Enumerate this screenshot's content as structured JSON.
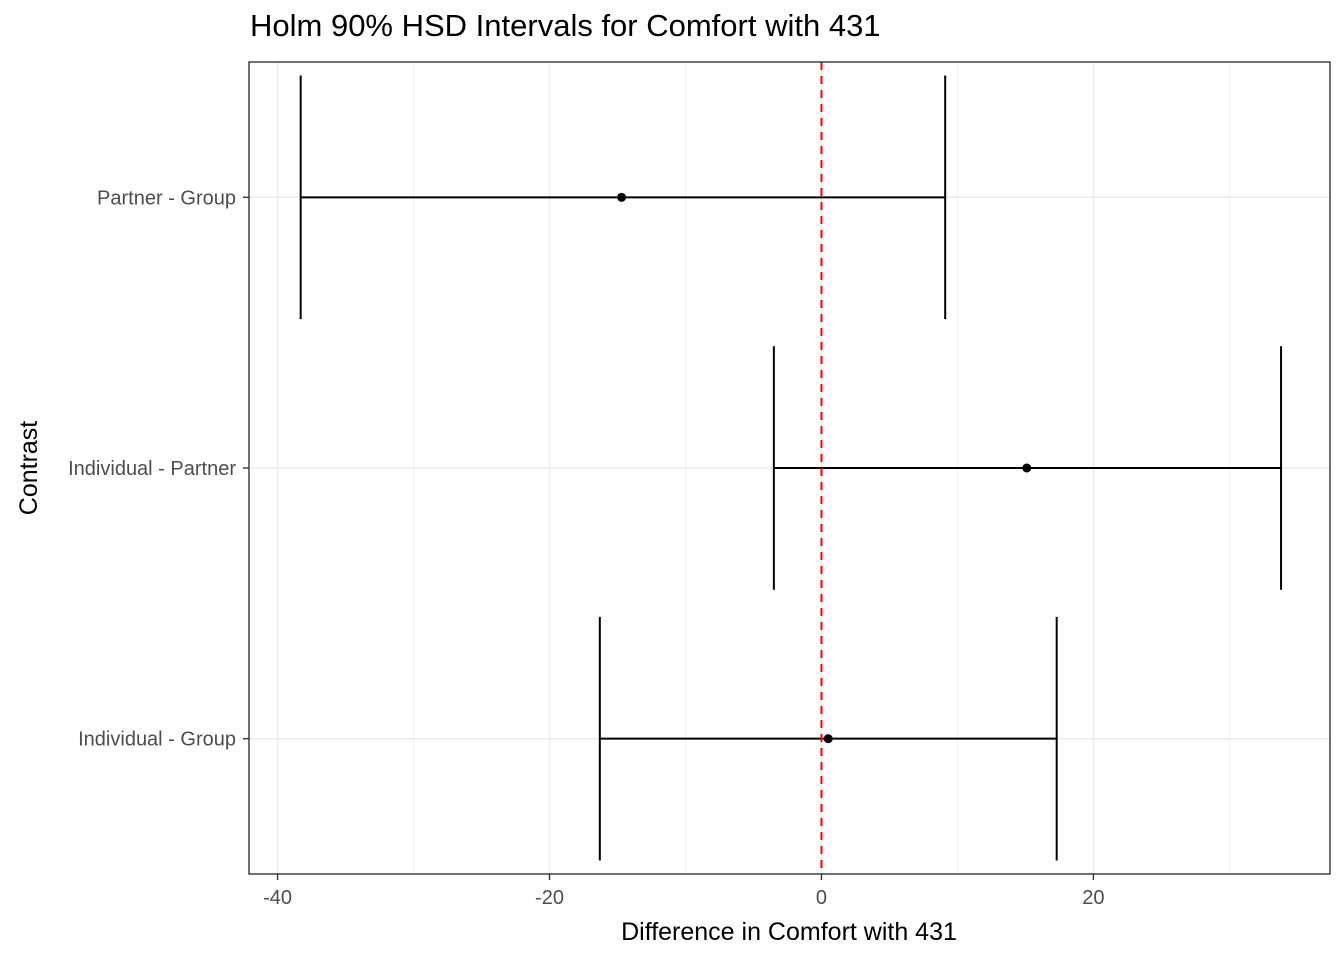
{
  "chart_data": {
    "type": "errorbar",
    "title": "Holm 90% HSD Intervals for Comfort with 431",
    "xlabel": "Difference in Comfort with 431",
    "ylabel": "Contrast",
    "xlim": [
      -42.1,
      37.4
    ],
    "x_ticks": [
      -40,
      -20,
      0,
      20
    ],
    "x_tick_labels": [
      "-40",
      "-20",
      "0",
      "20"
    ],
    "categories": [
      "Individual - Group",
      "Individual - Partner",
      "Partner - Group"
    ],
    "estimates": [
      0.5,
      15.1,
      -14.7
    ],
    "lower": [
      -16.3,
      -3.5,
      -38.3
    ],
    "upper": [
      17.3,
      33.8,
      9.1
    ],
    "reference_line": {
      "x": 0,
      "color": "#ff0000",
      "style": "dashed"
    },
    "grid": true,
    "legend": "none",
    "theme": "bw"
  }
}
